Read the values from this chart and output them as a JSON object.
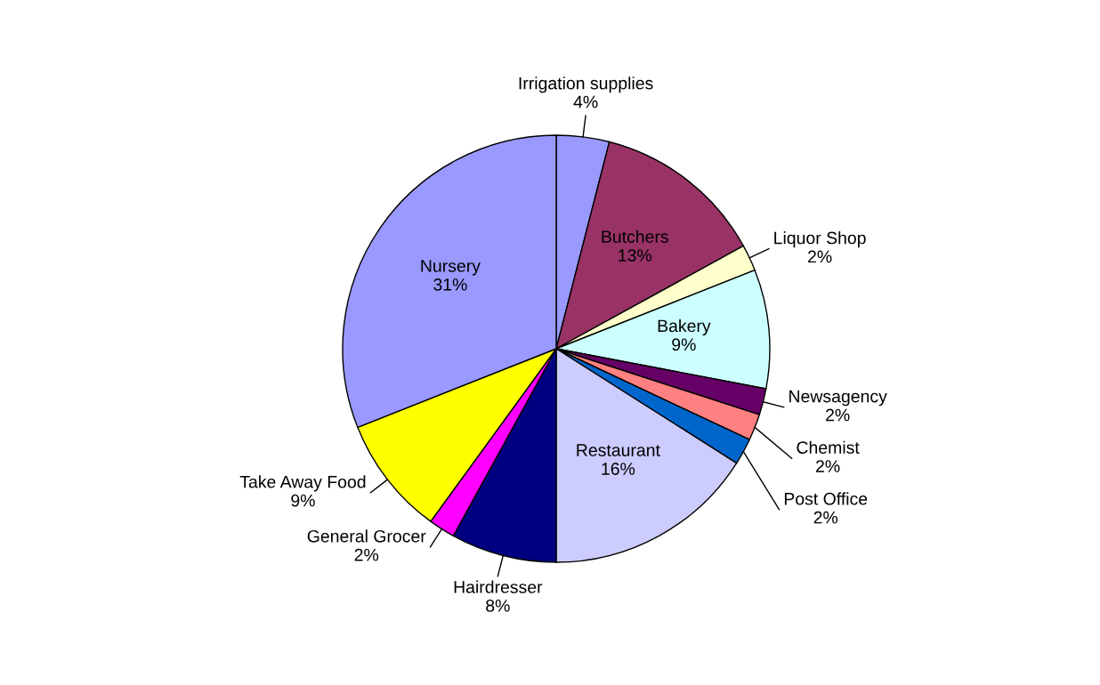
{
  "chart_data": {
    "type": "pie",
    "categories": [
      "Irrigation supplies",
      "Butchers",
      "Liquor Shop",
      "Bakery",
      "Newsagency",
      "Chemist",
      "Post Office",
      "Restaurant",
      "Hairdresser",
      "General Grocer",
      "Take Away Food",
      "Nursery"
    ],
    "values": [
      4,
      13,
      2,
      9,
      2,
      2,
      2,
      16,
      8,
      2,
      9,
      31
    ],
    "value_labels": [
      "4%",
      "13%",
      "2%",
      "9%",
      "2%",
      "2%",
      "2%",
      "16%",
      "8%",
      "2%",
      "9%",
      "31%"
    ],
    "colors": [
      "#9999ff",
      "#993366",
      "#ffffcc",
      "#ccffff",
      "#660066",
      "#ff8080",
      "#0066cc",
      "#ccccff",
      "#000080",
      "#ff00ff",
      "#ffff00",
      "#9999ff"
    ],
    "legend": false
  }
}
